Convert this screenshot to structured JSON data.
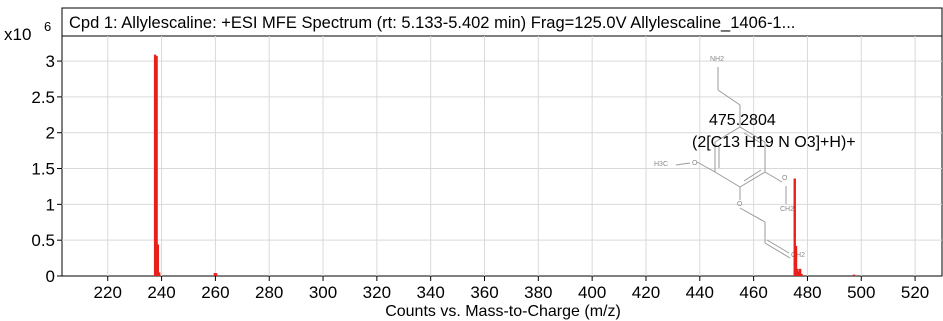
{
  "chart_data": {
    "type": "bar",
    "title": "Cpd 1: Allylescaline: +ESI MFE Spectrum (rt: 5.133-5.402 min) Frag=125.0V Allylescaline_1406-1...",
    "xlabel": "Counts vs. Mass-to-Charge (m/z)",
    "y_scale_label": "x10",
    "y_scale_exponent": "6",
    "xlim": [
      203,
      530
    ],
    "ylim": [
      0,
      3.35
    ],
    "x_ticks": [
      "220",
      "240",
      "260",
      "280",
      "300",
      "320",
      "340",
      "360",
      "380",
      "400",
      "420",
      "440",
      "460",
      "480",
      "500",
      "520"
    ],
    "y_ticks": [
      "0",
      "0.5",
      "1",
      "1.5",
      "2",
      "2.5",
      "3"
    ],
    "grid": true,
    "bar_color": "#e8201c",
    "peaks": [
      {
        "x": 237.6,
        "y": 3.09
      },
      {
        "x": 238.15,
        "y": 3.07
      },
      {
        "x": 238.6,
        "y": 0.44
      },
      {
        "x": 239.1,
        "y": 0.05
      },
      {
        "x": 259.8,
        "y": 0.04
      },
      {
        "x": 260.25,
        "y": 0.04
      },
      {
        "x": 475.28,
        "y": 1.36
      },
      {
        "x": 475.75,
        "y": 0.42
      },
      {
        "x": 476.3,
        "y": 0.1
      },
      {
        "x": 476.75,
        "y": 0.06
      },
      {
        "x": 477.3,
        "y": 0.1
      },
      {
        "x": 477.8,
        "y": 0.03
      },
      {
        "x": 497.3,
        "y": 0.02
      }
    ],
    "annotation": {
      "peak_x": 475.28,
      "mz": "475.2804",
      "formula": "(2[C13 H19 N O3]+H)+"
    },
    "structure_labels": {
      "nh2": "NH2",
      "h3c": "H3C",
      "ch2_upper": "CH2",
      "ch2_lower": "CH2",
      "o_left": "O",
      "o_mid": "O",
      "o_right": "O"
    }
  }
}
